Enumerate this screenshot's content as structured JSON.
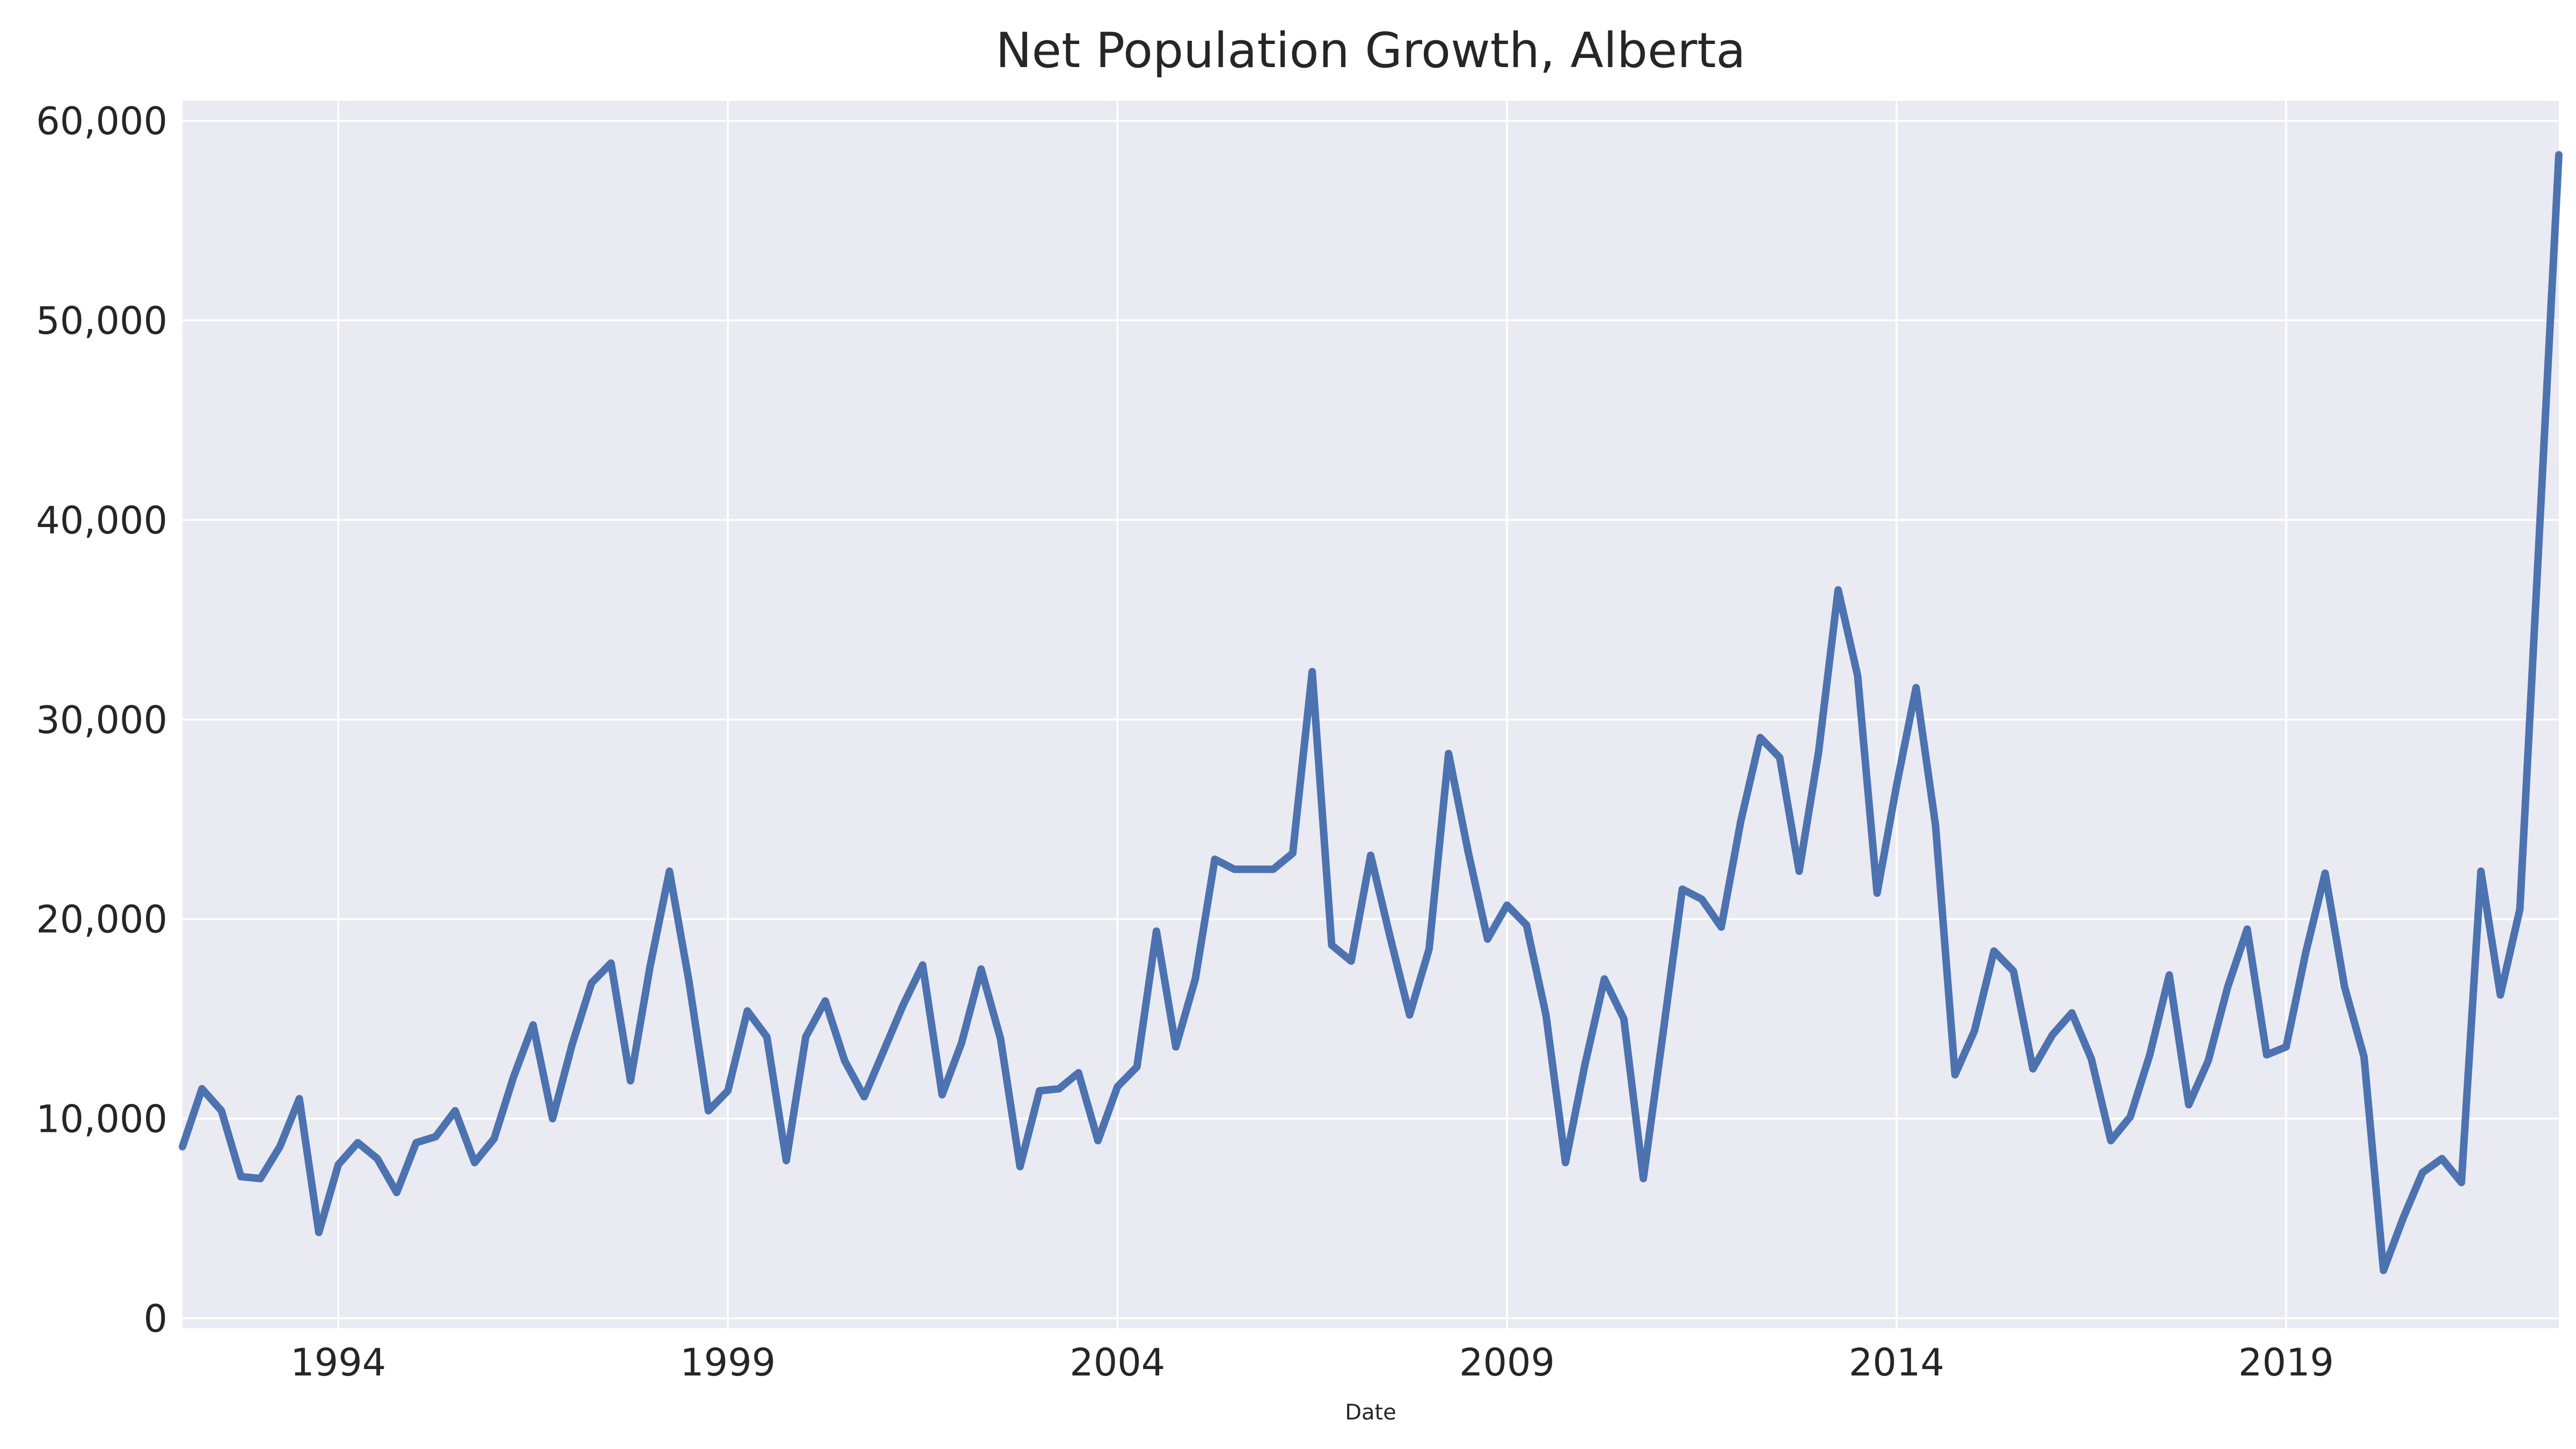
{
  "chart_data": {
    "type": "line",
    "title": "Net Population Growth, Alberta",
    "xlabel": "Date",
    "ylabel": "",
    "x_start": "1992Q1",
    "frequency": "quarterly",
    "xlim": [
      "1992Q1",
      "2022Q3"
    ],
    "ylim": [
      -500,
      61000
    ],
    "x_ticks": [
      "1994",
      "1999",
      "2004",
      "2009",
      "2014",
      "2019"
    ],
    "y_ticks": [
      "0",
      "10,000",
      "20,000",
      "30,000",
      "40,000",
      "50,000",
      "60,000"
    ],
    "grid": true,
    "legend": "none",
    "colors": {
      "line": "#4c72b0",
      "plot_background": "#eaeaf2",
      "grid": "#ffffff"
    },
    "series": [
      {
        "values": [
          8600,
          11500,
          10400,
          7100,
          7000,
          8600,
          11000,
          4300,
          7700,
          8800,
          8000,
          6300,
          8800,
          9100,
          10400,
          7800,
          9000,
          12100,
          14700,
          10000,
          13700,
          16800,
          17800,
          11900,
          17600,
          22400,
          16900,
          10400,
          11400,
          15400,
          14100,
          7900,
          14100,
          15900,
          12900,
          11100,
          13400,
          15700,
          17700,
          11200,
          13800,
          17500,
          14000,
          7600,
          11400,
          11500,
          12300,
          8900,
          11600,
          12600,
          19400,
          13600,
          17000,
          23000,
          22500,
          22500,
          22500,
          23300,
          32400,
          18700,
          17900,
          23200,
          19100,
          15200,
          18500,
          28300,
          23400,
          19000,
          20700,
          19700,
          15200,
          7800,
          12700,
          17000,
          15000,
          7000,
          14200,
          21500,
          21000,
          19600,
          24900,
          29100,
          28100,
          22400,
          28400,
          36500,
          32200,
          21300,
          26700,
          31600,
          24700,
          12200,
          14400,
          18400,
          17400,
          12500,
          14200,
          15300,
          13000,
          8900,
          10100,
          13200,
          17200,
          10700,
          12900,
          16600,
          19500,
          13200,
          13600,
          18300,
          22300,
          16600,
          13100,
          2400,
          5000,
          7300,
          8000,
          6800,
          22400,
          16200,
          20500,
          39300,
          58300
        ]
      }
    ]
  }
}
